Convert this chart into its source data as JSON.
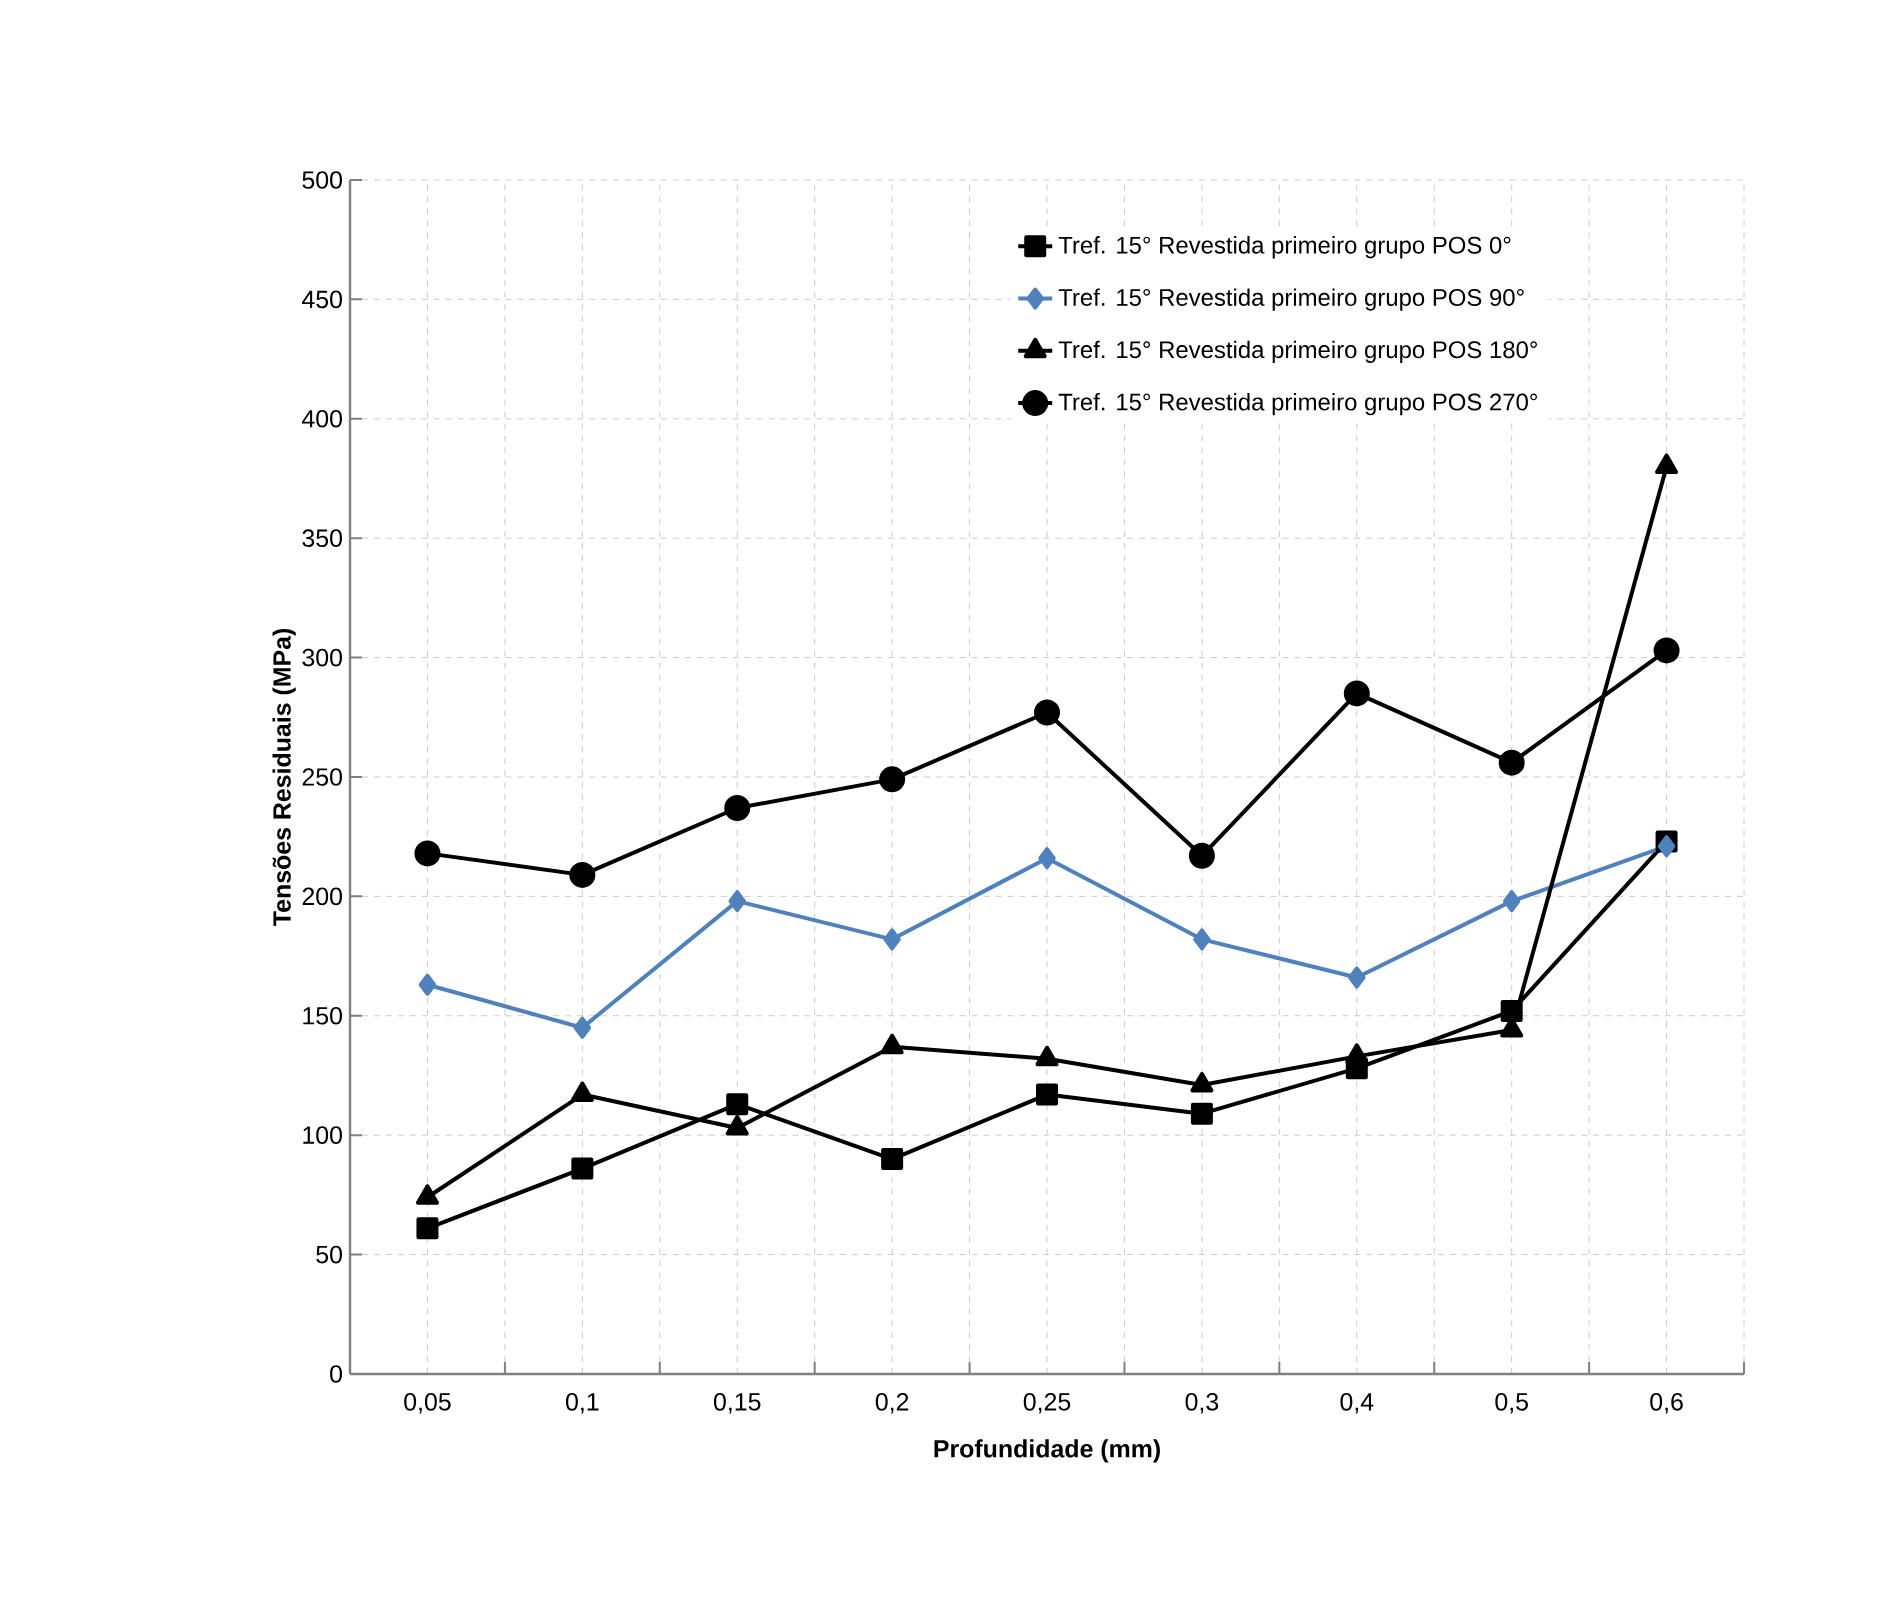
{
  "chart_data": {
    "type": "line",
    "xlabel": "Profundidade (mm)",
    "ylabel": "Tensões Residuais  (MPa)",
    "categories": [
      "0,05",
      "0,1",
      "0,15",
      "0,2",
      "0,25",
      "0,3",
      "0,4",
      "0,5",
      "0,6"
    ],
    "series": [
      {
        "name": "Tref. 15° Revestida primeiro grupo POS 0°",
        "color": "#000000",
        "marker": "square",
        "values": [
          61,
          86,
          113,
          90,
          117,
          109,
          128,
          152,
          223
        ]
      },
      {
        "name": "Tref. 15° Revestida primeiro grupo POS 90°",
        "color": "#4f81bd",
        "marker": "diamond",
        "values": [
          163,
          145,
          198,
          182,
          216,
          182,
          166,
          198,
          221
        ]
      },
      {
        "name": "Tref. 15° Revestida primeiro grupo POS 180°",
        "color": "#000000",
        "marker": "triangle",
        "values": [
          74,
          117,
          103,
          137,
          132,
          121,
          133,
          144,
          380
        ]
      },
      {
        "name": "Tref. 15° Revestida primeiro grupo POS 270°",
        "color": "#000000",
        "marker": "circle",
        "values": [
          218,
          209,
          237,
          249,
          277,
          217,
          285,
          256,
          303
        ]
      }
    ],
    "ylim": [
      0,
      500
    ],
    "yticks": [
      0,
      50,
      100,
      150,
      200,
      250,
      300,
      350,
      400,
      450,
      500
    ],
    "grid": true,
    "legend": "top right",
    "line_style": "solid"
  }
}
